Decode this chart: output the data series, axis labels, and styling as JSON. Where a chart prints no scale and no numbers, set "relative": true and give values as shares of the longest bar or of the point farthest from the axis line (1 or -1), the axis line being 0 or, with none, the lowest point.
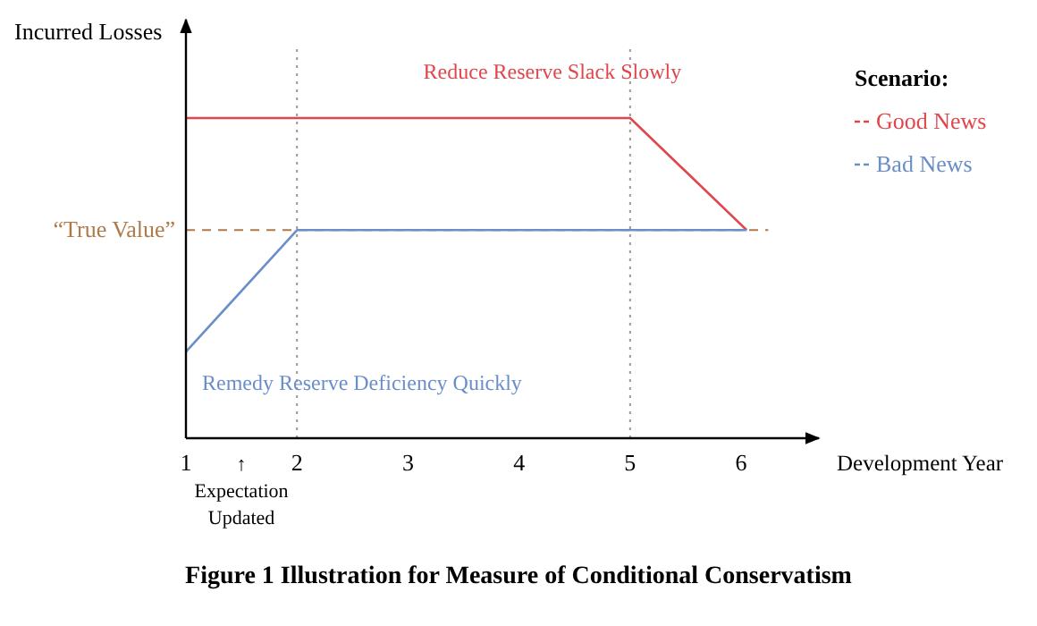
{
  "chart_data": {
    "type": "line",
    "relative": true,
    "title": "Figure 1 Illustration for Measure of Conditional Conservatism",
    "xlabel": "Development Year",
    "ylabel": "Incurred Losses",
    "legend_title": "Scenario:",
    "legend": "right",
    "tick_labels": "x",
    "xlim": [
      1,
      6.7
    ],
    "xticks": [
      1,
      2,
      3,
      4,
      5,
      6
    ],
    "series": [
      {
        "name": "Good News",
        "color": "#e0474c",
        "x": [
          1,
          5,
          6.05
        ],
        "values": [
          1,
          1,
          0.65
        ]
      },
      {
        "name": "Bad News",
        "color": "#6a8fc8",
        "x": [
          1,
          2,
          6.05
        ],
        "values": [
          0.27,
          0.65,
          0.65
        ]
      }
    ],
    "ref_lines": [
      {
        "axis": "y",
        "value": 0.65,
        "label": "“True Value”",
        "color": "#b07a48",
        "line_style": "dashed"
      },
      {
        "axis": "x",
        "value": 2,
        "label": null,
        "color": "#999999",
        "line_style": "dotted"
      },
      {
        "axis": "x",
        "value": 5,
        "label": null,
        "color": "#999999",
        "line_style": "dotted"
      }
    ],
    "annotations": [
      "Reduce Reserve Slack Slowly",
      "Remedy Reserve Deficiency Quickly",
      "↑ Expectation Updated"
    ]
  }
}
